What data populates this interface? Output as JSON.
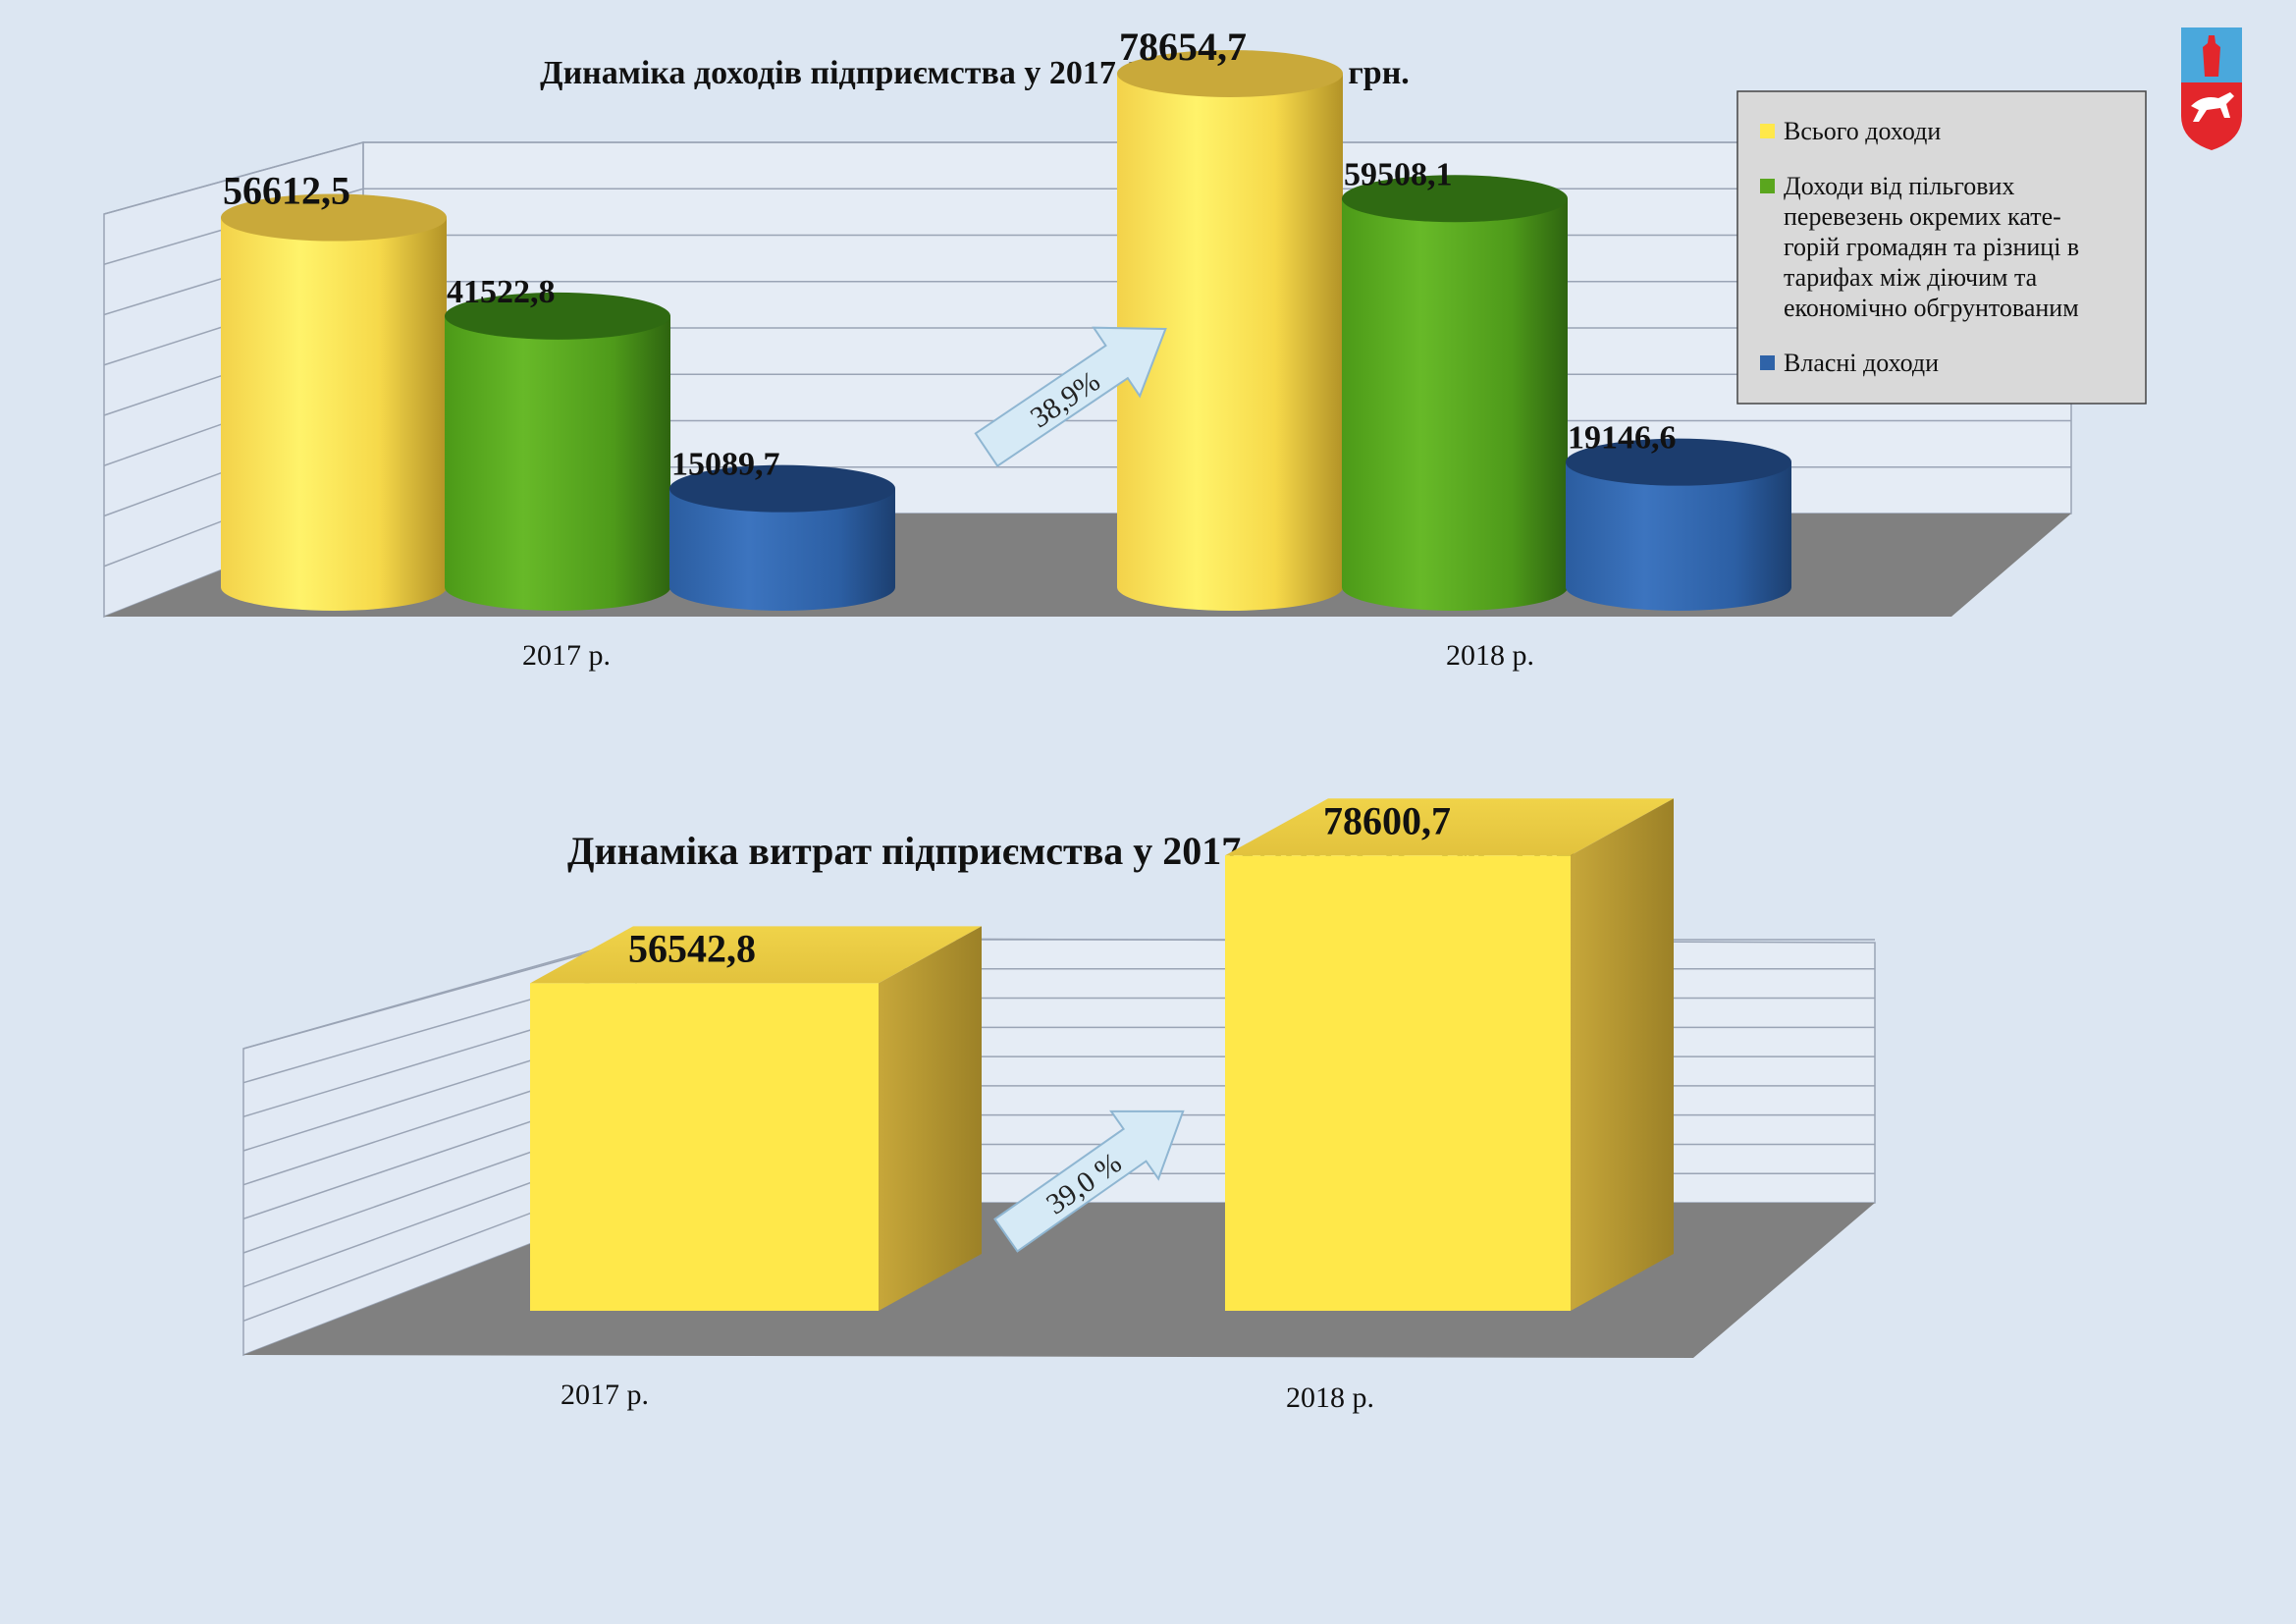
{
  "chart_data": [
    {
      "type": "bar",
      "title": "Динаміка  доходів підприємства у 2017-2018 р. р., тис. грн.",
      "categories": [
        "2017 р.",
        "2018 р."
      ],
      "series": [
        {
          "name": "Всього доходи",
          "values": [
            56612.5,
            78654.7
          ],
          "labels": [
            "56612,5",
            "78654,7"
          ],
          "color": "#ffe84a"
        },
        {
          "name": "Доходи від пільгових перевезень окремих категорій громадян та різниці в тарифах між діючим та економічно обгрунтованим",
          "values": [
            41522.8,
            59508.1
          ],
          "labels": [
            "41522,8",
            "59508,1"
          ],
          "color": "#5aa61e"
        },
        {
          "name": "Власні доходи",
          "values": [
            15089.7,
            19146.6
          ],
          "labels": [
            "15089,7",
            "19146,6"
          ],
          "color": "#2f63a8"
        }
      ],
      "legend": {
        "placement": "top-right",
        "lines": [
          [
            "Всього доходи"
          ],
          [
            "Доходи від пільгових",
            "перевезень окремих кате-",
            "горій громадян та різниці в",
            "тарифах між  діючим та",
            "економічно обгрунтованим"
          ],
          [
            "Власні доходи"
          ]
        ]
      },
      "annotation": "38,9%",
      "grid": true,
      "ylim": [
        0,
        80000
      ]
    },
    {
      "type": "bar",
      "title": "Динаміка  витрат підприємства у 2017-2018 р. р., тис. грн.",
      "categories": [
        "2017 р.",
        "2018 р."
      ],
      "series": [
        {
          "values": [
            56542.8,
            78600.7
          ],
          "labels": [
            "56542,8",
            "78600,7"
          ],
          "color": "#ffe84a"
        }
      ],
      "annotation": "39,0 %",
      "grid": true,
      "ylim": [
        0,
        80000
      ]
    }
  ],
  "emblem": {
    "icon": "coat-of-arms-icon",
    "colors": [
      "#4aa8dc",
      "#e3262b"
    ]
  }
}
